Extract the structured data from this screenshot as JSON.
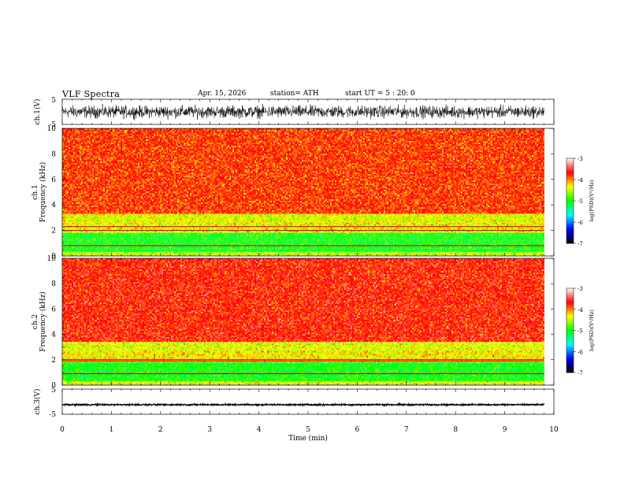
{
  "header": {
    "title": "VLF  Spectra",
    "date": "Apr. 15, 2026",
    "station": "station= ATH",
    "start": "start  UT  =   5  : 20: 0"
  },
  "chart_data": {
    "type": "heatmap",
    "title": "VLF  Spectra",
    "xlabel": "Time  (min)",
    "xlim": [
      0,
      10
    ],
    "x_ticks": [
      "0",
      "1",
      "2",
      "3",
      "4",
      "5",
      "6",
      "7",
      "8",
      "9",
      "10"
    ],
    "data_end_min": 9.8,
    "panels": [
      {
        "name": "ch1-waveform",
        "type": "line",
        "ylabel": "ch.1(V)",
        "ylim": [
          -5,
          5
        ],
        "y_ticks": [
          "5",
          "-5"
        ],
        "amplitude_v": 3.5
      },
      {
        "name": "ch1-spectrogram",
        "type": "heatmap",
        "ylabel": "ch.1\nFrequency  (kHz)",
        "ylim_khz": [
          0,
          10
        ],
        "y_ticks": [
          "10",
          "8",
          "6",
          "4",
          "2",
          "0"
        ],
        "bands": [
          {
            "from_khz": 3.3,
            "to_khz": 10,
            "level": -3.8
          },
          {
            "from_khz": 2.6,
            "to_khz": 3.3,
            "level": -4.4
          },
          {
            "from_khz": 1.8,
            "to_khz": 2.6,
            "level": -4.3
          },
          {
            "from_khz": 0.3,
            "to_khz": 1.8,
            "level": -5.0
          },
          {
            "from_khz": 0.0,
            "to_khz": 0.3,
            "level": -4.5
          }
        ],
        "lines_khz": [
          2.3,
          2.0,
          0.8
        ]
      },
      {
        "name": "ch2-spectrogram",
        "type": "heatmap",
        "ylabel": "ch.2\nFrequency  (kHz)",
        "ylim_khz": [
          0,
          10
        ],
        "y_ticks": [
          "10",
          "8",
          "6",
          "4",
          "2",
          "0"
        ],
        "bands": [
          {
            "from_khz": 3.4,
            "to_khz": 10,
            "level": -3.7
          },
          {
            "from_khz": 2.7,
            "to_khz": 3.4,
            "level": -4.4
          },
          {
            "from_khz": 1.8,
            "to_khz": 2.7,
            "level": -4.3
          },
          {
            "from_khz": 0.3,
            "to_khz": 1.8,
            "level": -5.0
          },
          {
            "from_khz": 0.0,
            "to_khz": 0.3,
            "level": -4.4
          }
        ],
        "lines_khz": [
          2.0,
          1.9,
          0.9
        ]
      },
      {
        "name": "ch3-waveform",
        "type": "line",
        "ylabel": "ch.3(V)",
        "ylim": [
          -5,
          5
        ],
        "y_ticks": [
          "5",
          "-5"
        ],
        "amplitude_v": 0.4,
        "offset_v": -1.2
      }
    ],
    "colorbar": {
      "label": "log(PSD)(V²/Hz)",
      "range": [
        -7,
        -3
      ],
      "ticks": [
        "-3",
        "-4",
        "-5",
        "-6",
        "-7"
      ],
      "colors": [
        "#000000",
        "#0000ff",
        "#00ffff",
        "#00ff00",
        "#ffff00",
        "#ff0000",
        "#ffffff"
      ]
    }
  }
}
